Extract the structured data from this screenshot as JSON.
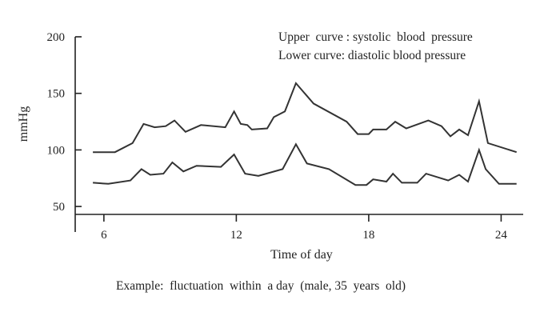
{
  "chart_data": {
    "type": "line",
    "title": "",
    "caption": "Example:  fluctuation  within  a day  (male, 35  years  old)",
    "xlabel": "Time of day",
    "ylabel": "mmHg",
    "xlim": [
      4.7,
      25.0
    ],
    "ylim": [
      43,
      200
    ],
    "x_ticks": [
      6,
      12,
      18,
      24
    ],
    "y_ticks": [
      50,
      100,
      150,
      200
    ],
    "legend": [
      "Upper  curve : systolic  blood  pressure",
      "Lower curve: diastolic blood pressure"
    ],
    "legend_position": "top-right",
    "series": [
      {
        "name": "systolic blood pressure",
        "color": "#333333",
        "points": [
          [
            5.5,
            98
          ],
          [
            6.5,
            98
          ],
          [
            7.3,
            106
          ],
          [
            7.8,
            123
          ],
          [
            8.3,
            120
          ],
          [
            8.8,
            121
          ],
          [
            9.2,
            126
          ],
          [
            9.7,
            116
          ],
          [
            10.4,
            122
          ],
          [
            11.5,
            120
          ],
          [
            11.9,
            134
          ],
          [
            12.2,
            123
          ],
          [
            12.5,
            122
          ],
          [
            12.7,
            118
          ],
          [
            13.4,
            119
          ],
          [
            13.7,
            129
          ],
          [
            14.2,
            134
          ],
          [
            14.7,
            159
          ],
          [
            15.5,
            141
          ],
          [
            17.0,
            125
          ],
          [
            17.5,
            114
          ],
          [
            18.0,
            114
          ],
          [
            18.2,
            118
          ],
          [
            18.8,
            118
          ],
          [
            19.2,
            125
          ],
          [
            19.7,
            119
          ],
          [
            20.7,
            126
          ],
          [
            21.3,
            121
          ],
          [
            21.7,
            112
          ],
          [
            22.1,
            118
          ],
          [
            22.5,
            113
          ],
          [
            23.0,
            143
          ],
          [
            23.4,
            106
          ],
          [
            24.7,
            98
          ]
        ]
      },
      {
        "name": "diastolic blood pressure",
        "color": "#333333",
        "points": [
          [
            5.5,
            71
          ],
          [
            6.2,
            70
          ],
          [
            7.2,
            73
          ],
          [
            7.7,
            83
          ],
          [
            8.1,
            78
          ],
          [
            8.7,
            79
          ],
          [
            9.1,
            89
          ],
          [
            9.6,
            81
          ],
          [
            10.2,
            86
          ],
          [
            11.3,
            85
          ],
          [
            11.9,
            96
          ],
          [
            12.4,
            79
          ],
          [
            13.0,
            77
          ],
          [
            14.1,
            83
          ],
          [
            14.7,
            105
          ],
          [
            15.2,
            88
          ],
          [
            16.2,
            83
          ],
          [
            17.4,
            69
          ],
          [
            17.9,
            69
          ],
          [
            18.2,
            74
          ],
          [
            18.8,
            72
          ],
          [
            19.1,
            79
          ],
          [
            19.5,
            71
          ],
          [
            20.2,
            71
          ],
          [
            20.6,
            79
          ],
          [
            21.6,
            73
          ],
          [
            22.1,
            78
          ],
          [
            22.5,
            72
          ],
          [
            23.0,
            100
          ],
          [
            23.3,
            83
          ],
          [
            23.9,
            70
          ],
          [
            24.7,
            70
          ]
        ]
      }
    ]
  }
}
